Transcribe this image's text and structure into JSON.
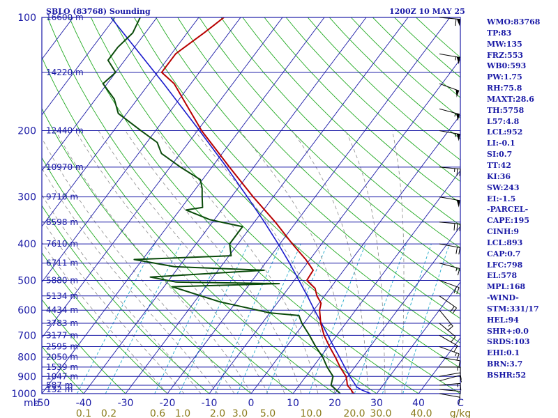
{
  "header": {
    "station": "SBLO (83768) Sounding",
    "valid_time": "1200Z 10 MAY 25"
  },
  "indices": [
    "WMO:83768",
    "TP:83",
    "MW:135",
    "FRZ:553",
    "WB0:593",
    "PW:1.75",
    "RH:75.8",
    "MAXT:28.6",
    "TH:5758",
    "L57:4.8",
    "LCL:952",
    "LI:-0.1",
    "SI:0.7",
    "TT:42",
    "KI:36",
    "SW:243",
    "EI:-1.5",
    "-PARCEL-",
    "CAPE:195",
    "CINH:9",
    "LCL:893",
    "CAP:0.7",
    "LFC:798",
    "EL:578",
    "MPL:168",
    "-WIND-",
    "STM:331/17",
    "HEL:94",
    "SHR+:0.0",
    "SRDS:103",
    "EHI:0.1",
    "BRN:3.7",
    "BSHR:52"
  ],
  "colors": {
    "frame": "#1a1aa6",
    "isobar": "#1a1aa6",
    "isotherm": "#1a1aa6",
    "dry_adiabat": "#22aa22",
    "moist_adiabat": "#8a8a8a",
    "mixing_ratio": "#22aacc",
    "temperature": "#b80000",
    "dewpoint": "#0a4a0a",
    "parcel": "#1a1acc",
    "mixing_ratio_labels": "#8a7a1a",
    "wind_barbs": "#000000"
  },
  "chart_data": {
    "type": "line",
    "title": "SBLO (83768) Sounding",
    "y_axis": {
      "unit": "mb",
      "scale": "log",
      "ylim": [
        1000,
        100
      ],
      "reversed": true,
      "tick_labels": [
        "100",
        "200",
        "300",
        "400",
        "500",
        "600",
        "700",
        "800",
        "900",
        "1000"
      ]
    },
    "x_axis": {
      "unit": "C",
      "xlim": [
        -50,
        50
      ],
      "skewed": true,
      "ticks": [
        -50,
        -40,
        -30,
        -20,
        -10,
        0,
        10,
        20,
        30,
        40
      ],
      "tick_labels": [
        "-50",
        "-40",
        "-30",
        "-20",
        "-10",
        "0",
        "10",
        "20",
        "30",
        "40"
      ]
    },
    "x_unit_left": "mb",
    "x_unit_right": "C",
    "mixing_ratio_axis": {
      "unit": "g/kg",
      "values": [
        0.1,
        0.2,
        0.6,
        1.0,
        2.0,
        3.0,
        5.0,
        10.0,
        20.0,
        30.0,
        40.0
      ],
      "labels": [
        "0.1",
        "0.2",
        "0.6",
        "1.0",
        "2.0",
        "3.0",
        "5.0",
        "10.0",
        "20.0",
        "30.0",
        "40.0"
      ]
    },
    "height_labels": [
      {
        "p": 100,
        "label": "16600 m"
      },
      {
        "p": 140,
        "label": "14220 m"
      },
      {
        "p": 200,
        "label": "12440 m"
      },
      {
        "p": 250,
        "label": "10970 m"
      },
      {
        "p": 300,
        "label": "9710 m"
      },
      {
        "p": 350,
        "label": "8598 m"
      },
      {
        "p": 400,
        "label": "7610 m"
      },
      {
        "p": 450,
        "label": "6711 m"
      },
      {
        "p": 500,
        "label": "5880 m"
      },
      {
        "p": 550,
        "label": "5134 m"
      },
      {
        "p": 600,
        "label": "4434 m"
      },
      {
        "p": 650,
        "label": "3783 m"
      },
      {
        "p": 700,
        "label": "3177 m"
      },
      {
        "p": 750,
        "label": "2595 m"
      },
      {
        "p": 800,
        "label": "2050 m"
      },
      {
        "p": 850,
        "label": "1539 m"
      },
      {
        "p": 900,
        "label": "1047 m"
      },
      {
        "p": 950,
        "label": "587 m"
      },
      {
        "p": 975,
        "label": "132 m"
      }
    ],
    "series": [
      {
        "role": "temperature",
        "points": [
          {
            "p": 1000,
            "t": 24.5
          },
          {
            "p": 975,
            "t": 23.1
          },
          {
            "p": 950,
            "t": 21.5
          },
          {
            "p": 925,
            "t": 20.6
          },
          {
            "p": 900,
            "t": 19.6
          },
          {
            "p": 850,
            "t": 16.5
          },
          {
            "p": 800,
            "t": 13.6
          },
          {
            "p": 750,
            "t": 10.3
          },
          {
            "p": 700,
            "t": 7.0
          },
          {
            "p": 650,
            "t": 4.0
          },
          {
            "p": 600,
            "t": 1.4
          },
          {
            "p": 575,
            "t": 0.5
          },
          {
            "p": 550,
            "t": -1.8
          },
          {
            "p": 525,
            "t": -3.6
          },
          {
            "p": 500,
            "t": -7.0
          },
          {
            "p": 470,
            "t": -7.3
          },
          {
            "p": 440,
            "t": -11.0
          },
          {
            "p": 400,
            "t": -17.0
          },
          {
            "p": 350,
            "t": -25.0
          },
          {
            "p": 300,
            "t": -34.8
          },
          {
            "p": 250,
            "t": -45.8
          },
          {
            "p": 200,
            "t": -59.0
          },
          {
            "p": 170,
            "t": -67.5
          },
          {
            "p": 150,
            "t": -74.0
          },
          {
            "p": 140,
            "t": -79.0
          },
          {
            "p": 125,
            "t": -79.0
          },
          {
            "p": 110,
            "t": -76.0
          },
          {
            "p": 105,
            "t": -75.0
          },
          {
            "p": 100,
            "t": -74.0
          }
        ]
      },
      {
        "role": "dewpoint",
        "points": [
          {
            "p": 1000,
            "t": 21.3
          },
          {
            "p": 975,
            "t": 19.5
          },
          {
            "p": 950,
            "t": 17.6
          },
          {
            "p": 900,
            "t": 16.5
          },
          {
            "p": 850,
            "t": 13.4
          },
          {
            "p": 800,
            "t": 10.6
          },
          {
            "p": 750,
            "t": 7.0
          },
          {
            "p": 700,
            "t": 3.5
          },
          {
            "p": 650,
            "t": -0.5
          },
          {
            "p": 620,
            "t": -2.6
          },
          {
            "p": 610,
            "t": -10.0
          },
          {
            "p": 570,
            "t": -24.0
          },
          {
            "p": 520,
            "t": -38.0
          },
          {
            "p": 510,
            "t": -13.0
          },
          {
            "p": 505,
            "t": -38.0
          },
          {
            "p": 490,
            "t": -45.0
          },
          {
            "p": 470,
            "t": -19.0
          },
          {
            "p": 460,
            "t": -41.0
          },
          {
            "p": 440,
            "t": -52.0
          },
          {
            "p": 430,
            "t": -29.5
          },
          {
            "p": 400,
            "t": -32.0
          },
          {
            "p": 360,
            "t": -32.0
          },
          {
            "p": 345,
            "t": -41.0
          },
          {
            "p": 325,
            "t": -48.5
          },
          {
            "p": 320,
            "t": -45.0
          },
          {
            "p": 300,
            "t": -47.0
          },
          {
            "p": 285,
            "t": -48.5
          },
          {
            "p": 270,
            "t": -50.5
          },
          {
            "p": 250,
            "t": -57.5
          },
          {
            "p": 230,
            "t": -64.5
          },
          {
            "p": 215,
            "t": -67.5
          },
          {
            "p": 200,
            "t": -73.5
          },
          {
            "p": 180,
            "t": -82.0
          },
          {
            "p": 165,
            "t": -85.5
          },
          {
            "p": 150,
            "t": -91.0
          },
          {
            "p": 140,
            "t": -90.0
          },
          {
            "p": 130,
            "t": -94.0
          },
          {
            "p": 120,
            "t": -94.0
          },
          {
            "p": 110,
            "t": -93.0
          },
          {
            "p": 100,
            "t": -94.0
          }
        ]
      },
      {
        "role": "parcel",
        "points": [
          {
            "p": 1000,
            "t": 28.6
          },
          {
            "p": 980,
            "t": 26.0
          },
          {
            "p": 960,
            "t": 24.0
          },
          {
            "p": 950,
            "t": 23.5
          },
          {
            "p": 900,
            "t": 20.5
          },
          {
            "p": 850,
            "t": 17.6
          },
          {
            "p": 800,
            "t": 14.6
          },
          {
            "p": 750,
            "t": 11.3
          },
          {
            "p": 700,
            "t": 7.9
          },
          {
            "p": 650,
            "t": 4.2
          },
          {
            "p": 600,
            "t": 0.2
          },
          {
            "p": 550,
            "t": -4.1
          },
          {
            "p": 500,
            "t": -8.9
          },
          {
            "p": 450,
            "t": -14.2
          },
          {
            "p": 400,
            "t": -20.4
          },
          {
            "p": 350,
            "t": -27.6
          },
          {
            "p": 300,
            "t": -36.2
          },
          {
            "p": 250,
            "t": -46.5
          },
          {
            "p": 200,
            "t": -59.5
          },
          {
            "p": 150,
            "t": -76.5
          },
          {
            "p": 100,
            "t": -101.0
          }
        ]
      }
    ],
    "wind_barbs": [
      {
        "p": 1000,
        "dir": 100,
        "spd": 10
      },
      {
        "p": 975,
        "dir": 95,
        "spd": 10
      },
      {
        "p": 950,
        "dir": 85,
        "spd": 15
      },
      {
        "p": 925,
        "dir": 75,
        "spd": 10
      },
      {
        "p": 900,
        "dir": 80,
        "spd": 10
      },
      {
        "p": 850,
        "dir": 90,
        "spd": 15
      },
      {
        "p": 800,
        "dir": 100,
        "spd": 10
      },
      {
        "p": 750,
        "dir": 110,
        "spd": 15
      },
      {
        "p": 700,
        "dir": 120,
        "spd": 10
      },
      {
        "p": 650,
        "dir": 130,
        "spd": 10
      },
      {
        "p": 600,
        "dir": 140,
        "spd": 15
      },
      {
        "p": 550,
        "dir": 125,
        "spd": 20
      },
      {
        "p": 500,
        "dir": 110,
        "spd": 20
      },
      {
        "p": 450,
        "dir": 105,
        "spd": 15
      },
      {
        "p": 400,
        "dir": 100,
        "spd": 20
      },
      {
        "p": 350,
        "dir": 95,
        "spd": 30
      },
      {
        "p": 300,
        "dir": 100,
        "spd": 50
      },
      {
        "p": 250,
        "dir": 95,
        "spd": 25
      },
      {
        "p": 200,
        "dir": 100,
        "spd": 55
      },
      {
        "p": 175,
        "dir": 105,
        "spd": 55
      },
      {
        "p": 150,
        "dir": 110,
        "spd": 50
      },
      {
        "p": 125,
        "dir": 100,
        "spd": 55
      },
      {
        "p": 100,
        "dir": 95,
        "spd": 60
      }
    ]
  }
}
